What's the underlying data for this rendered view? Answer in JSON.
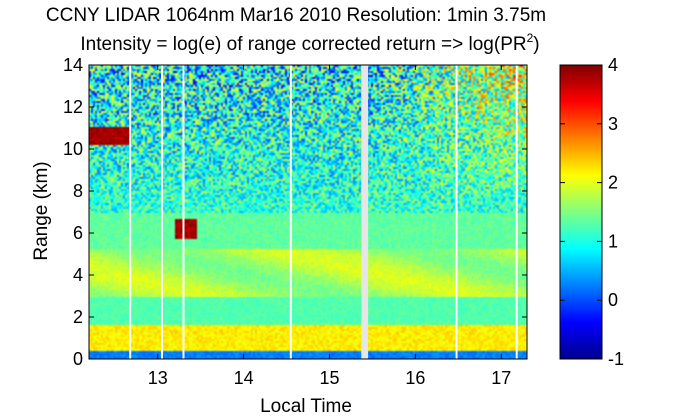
{
  "chart_data": {
    "type": "heatmap",
    "title_line1": "CCNY LIDAR 1064nm Mar16 2010 Resolution: 1min 3.75m",
    "title_line2_prefix": "Intensity = log(e) of range corrected return => log(PR",
    "title_line2_sup": "2",
    "title_line2_suffix": ")",
    "xlabel": "Local Time",
    "ylabel": "Range (km)",
    "xlim": [
      12.2,
      17.3
    ],
    "ylim": [
      0,
      14
    ],
    "x_ticks": [
      13,
      14,
      15,
      16,
      17
    ],
    "x_tick_labels": [
      "13",
      "14",
      "15",
      "16",
      "17"
    ],
    "y_ticks": [
      0,
      2,
      4,
      6,
      8,
      10,
      12,
      14
    ],
    "y_tick_labels": [
      "0",
      "2",
      "4",
      "6",
      "8",
      "10",
      "12",
      "14"
    ],
    "colorbar": {
      "range": [
        -1,
        4
      ],
      "ticks": [
        -1,
        0,
        1,
        2,
        3,
        4
      ],
      "tick_labels": [
        "-1",
        "0",
        "1",
        "2",
        "3",
        "4"
      ],
      "colormap": "jet"
    },
    "missing_data_times": [
      12.68,
      13.05,
      13.3,
      14.55,
      15.43,
      16.48,
      17.18
    ],
    "missing_data_gap": [
      15.37,
      15.45
    ],
    "features": [
      {
        "name": "boundary-layer-top",
        "range_km": 4.6,
        "time_range": [
          12.2,
          17.3
        ],
        "intensity": 1.9
      },
      {
        "name": "lower-layer",
        "range_km": 1.0,
        "time_range": [
          12.2,
          17.3
        ],
        "intensity": 2.2
      },
      {
        "name": "cloud-high",
        "range_km": 10.6,
        "time_range": [
          12.2,
          12.7
        ],
        "intensity": 4
      },
      {
        "name": "cloud-mid",
        "range_km": 6.2,
        "time_range": [
          13.2,
          13.45
        ],
        "intensity": 4
      }
    ]
  }
}
